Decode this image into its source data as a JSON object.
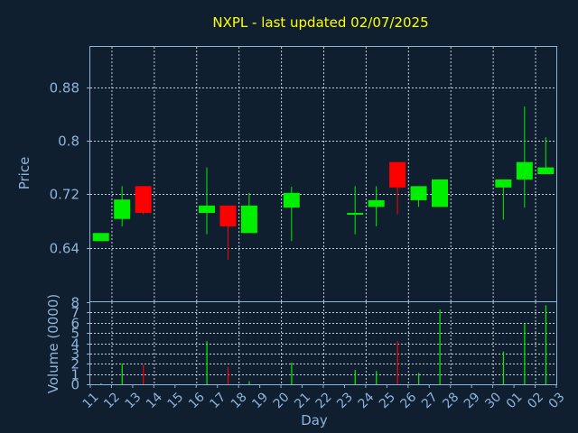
{
  "chart_data": {
    "type": "candlestick",
    "title": "NXPL - last updated 02/07/2025",
    "xlabel": "Day",
    "price_axis": {
      "label": "Price",
      "ylim": [
        0.56,
        0.94
      ],
      "ticks": [
        "0.64",
        "0.72",
        "0.8",
        "0.88"
      ],
      "tick_values": [
        0.64,
        0.72,
        0.8,
        0.88
      ]
    },
    "volume_axis": {
      "label": "Volume (0000)",
      "ylim": [
        0,
        8
      ],
      "ticks": [
        "0",
        "1",
        "2",
        "3",
        "4",
        "5",
        "6",
        "7",
        "8"
      ]
    },
    "x_ticks": [
      "11",
      "12",
      "13",
      "14",
      "15",
      "16",
      "17",
      "18",
      "19",
      "20",
      "21",
      "22",
      "23",
      "24",
      "25",
      "26",
      "27",
      "28",
      "29",
      "30",
      "01",
      "02",
      "03"
    ],
    "grid": true,
    "colors": {
      "background": "#0f1f30",
      "title": "#ffff00",
      "axis_text": "#8fb3d9",
      "frame": "#8fb3d9",
      "grid": "#c8d0d8",
      "up": "#00ee00",
      "down": "#ff0000"
    },
    "candles": [
      {
        "day": "11",
        "open": 0.65,
        "high": 0.662,
        "low": 0.65,
        "close": 0.662
      },
      {
        "day": "12",
        "open": 0.683,
        "high": 0.732,
        "low": 0.672,
        "close": 0.712
      },
      {
        "day": "13",
        "open": 0.732,
        "high": 0.732,
        "low": 0.69,
        "close": 0.692
      },
      {
        "day": "16",
        "open": 0.692,
        "high": 0.76,
        "low": 0.66,
        "close": 0.703
      },
      {
        "day": "17",
        "open": 0.703,
        "high": 0.703,
        "low": 0.622,
        "close": 0.672
      },
      {
        "day": "18",
        "open": 0.662,
        "high": 0.722,
        "low": 0.662,
        "close": 0.703
      },
      {
        "day": "20",
        "open": 0.7,
        "high": 0.731,
        "low": 0.65,
        "close": 0.722
      },
      {
        "day": "23",
        "open": 0.69,
        "high": 0.732,
        "low": 0.66,
        "close": 0.692
      },
      {
        "day": "24",
        "open": 0.701,
        "high": 0.732,
        "low": 0.672,
        "close": 0.711
      },
      {
        "day": "25",
        "open": 0.768,
        "high": 0.768,
        "low": 0.69,
        "close": 0.73
      },
      {
        "day": "26",
        "open": 0.711,
        "high": 0.732,
        "low": 0.701,
        "close": 0.732
      },
      {
        "day": "27",
        "open": 0.701,
        "high": 0.742,
        "low": 0.701,
        "close": 0.742
      },
      {
        "day": "30",
        "open": 0.73,
        "high": 0.742,
        "low": 0.682,
        "close": 0.742
      },
      {
        "day": "01",
        "open": 0.742,
        "high": 0.851,
        "low": 0.7,
        "close": 0.768
      },
      {
        "day": "02",
        "open": 0.75,
        "high": 0.805,
        "low": 0.75,
        "close": 0.76
      }
    ],
    "volumes": [
      {
        "day": "11",
        "value": 0.1
      },
      {
        "day": "12",
        "value": 2.0
      },
      {
        "day": "13",
        "value": 1.9
      },
      {
        "day": "16",
        "value": 4.2
      },
      {
        "day": "17",
        "value": 1.7
      },
      {
        "day": "18",
        "value": 0.3
      },
      {
        "day": "20",
        "value": 2.1
      },
      {
        "day": "23",
        "value": 1.4
      },
      {
        "day": "24",
        "value": 1.3
      },
      {
        "day": "25",
        "value": 4.2
      },
      {
        "day": "26",
        "value": 1.1
      },
      {
        "day": "27",
        "value": 7.3
      },
      {
        "day": "30",
        "value": 3.2
      },
      {
        "day": "01",
        "value": 5.9
      },
      {
        "day": "02",
        "value": 7.7
      }
    ]
  }
}
